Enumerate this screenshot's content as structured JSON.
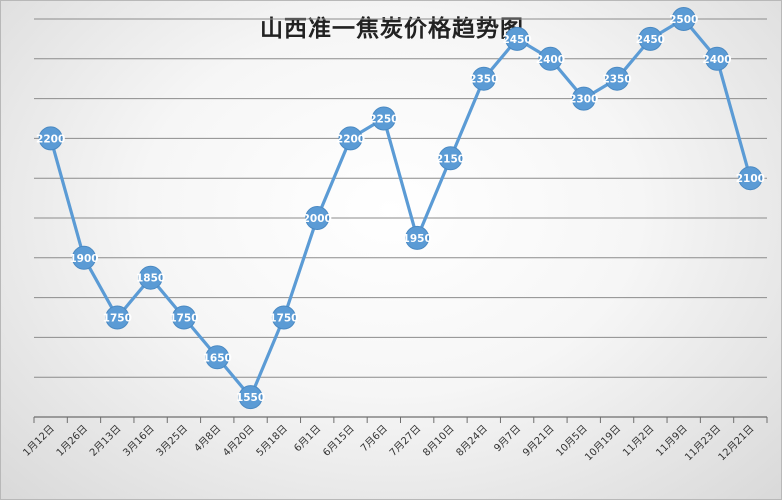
{
  "chart_data": {
    "type": "line",
    "title": "山西准一焦炭价格趋势图",
    "categories": [
      "1月12日",
      "1月26日",
      "2月13日",
      "3月16日",
      "3月25日",
      "4月8日",
      "4月20日",
      "5月18日",
      "6月1日",
      "6月15日",
      "7月6日",
      "7月27日",
      "8月10日",
      "8月24日",
      "9月7日",
      "9月21日",
      "10月5日",
      "10月19日",
      "11月2日",
      "11月9日",
      "11月23日",
      "12月21日"
    ],
    "series": [
      {
        "values": [
          2200,
          1900,
          1750,
          1850,
          1750,
          1650,
          1550,
          1750,
          2000,
          2200,
          2250,
          1950,
          2150,
          2350,
          2450,
          2400,
          2300,
          2350,
          2450,
          2500,
          2400,
          2100
        ]
      }
    ],
    "ylim": [
      1500,
      2500
    ],
    "grid": true,
    "data_labels": true,
    "series_color": "#5b9bd5"
  }
}
